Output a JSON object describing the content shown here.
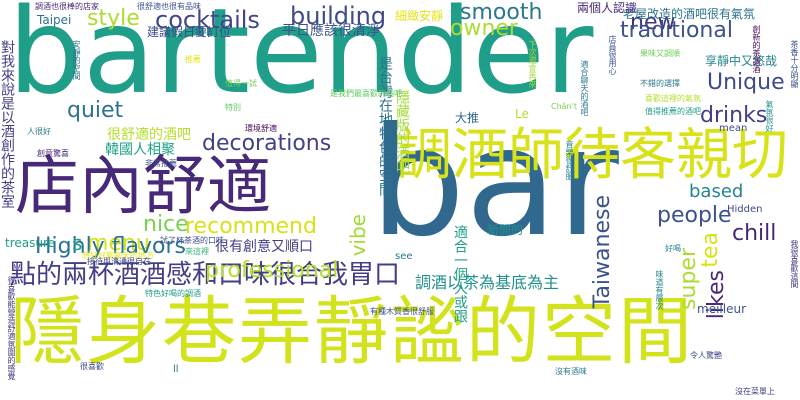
{
  "colors": {
    "background": "#ffffff",
    "palette": [
      "#440154",
      "#482878",
      "#3e4989",
      "#31688e",
      "#26828e",
      "#1f9e89",
      "#35b779",
      "#6ece58",
      "#b5de2b",
      "#fde725"
    ]
  },
  "words": [
    {
      "text": "bartender",
      "size": 118,
      "color": "#1f9e89"
    },
    {
      "text": "bar",
      "size": 150,
      "color": "#31688e"
    },
    {
      "text": "隱身巷弄靜謐的空間",
      "size": 74,
      "color": "#d2e21b"
    },
    {
      "text": "店內舒適",
      "size": 64,
      "color": "#482878"
    },
    {
      "text": "調酒師待客親切",
      "size": 56,
      "color": "#d8e219"
    },
    {
      "text": "點的兩杯酒酒感和口味很合我胃口",
      "size": 26,
      "color": "#433e85"
    },
    {
      "text": "cocktails",
      "size": 24,
      "color": "#404688"
    },
    {
      "text": "building",
      "size": 24,
      "color": "#3e4a89"
    },
    {
      "text": "style",
      "size": 22,
      "color": "#addc30"
    },
    {
      "text": "smooth",
      "size": 22,
      "color": "#2a788e"
    },
    {
      "text": "owner",
      "size": 22,
      "color": "#addc30"
    },
    {
      "text": "new",
      "size": 22,
      "color": "#46337e"
    },
    {
      "text": "traditional",
      "size": 22,
      "color": "#3b528b"
    },
    {
      "text": "Unique",
      "size": 22,
      "color": "#3e4a89"
    },
    {
      "text": "drinks",
      "size": 22,
      "color": "#433e85"
    },
    {
      "text": "quiet",
      "size": 22,
      "color": "#2c728e"
    },
    {
      "text": "decorations",
      "size": 22,
      "color": "#424086"
    },
    {
      "text": "people",
      "size": 22,
      "color": "#3b528b"
    },
    {
      "text": "based",
      "size": 18,
      "color": "#25858e"
    },
    {
      "text": "chill",
      "size": 22,
      "color": "#482677"
    },
    {
      "text": "menu",
      "size": 22,
      "color": "#d8e219"
    },
    {
      "text": "nice",
      "size": 22,
      "color": "#7ad151"
    },
    {
      "text": "recommend",
      "size": 22,
      "color": "#d8e219"
    },
    {
      "text": "Highly flavors",
      "size": 22,
      "color": "#2c728e"
    },
    {
      "text": "professional",
      "size": 22,
      "color": "#b5de2b"
    },
    {
      "text": "super",
      "size": 22,
      "color": "#addc30"
    },
    {
      "text": "likes",
      "size": 22,
      "color": "#482878"
    },
    {
      "text": "tea",
      "size": 22,
      "color": "#d8e219"
    },
    {
      "text": "vibe",
      "size": 20,
      "color": "#a2da37"
    },
    {
      "text": "Taiwanese",
      "size": 22,
      "color": "#3b528b"
    },
    {
      "text": "s",
      "size": 20,
      "color": "#1fa188"
    },
    {
      "text": "調酒以茶為基底為主",
      "size": 16,
      "color": "#21918c"
    },
    {
      "text": "適合一個人或跟",
      "size": 14,
      "color": "#1f9e89"
    },
    {
      "text": "平日應該很清淨",
      "size": 14,
      "color": "#3b528b"
    },
    {
      "text": "隱藏版的酒吧",
      "size": 14,
      "color": "#a2da37"
    },
    {
      "text": "對我來說是以酒創作的茶室",
      "size": 14,
      "color": "#424086"
    },
    {
      "text": "建議假日要訂位",
      "size": 12,
      "color": "#3e4989"
    },
    {
      "text": "很舒適的酒吧",
      "size": 14,
      "color": "#b5de2b"
    },
    {
      "text": "韓國人相聚",
      "size": 14,
      "color": "#1fa188"
    },
    {
      "text": "很有創意又順口",
      "size": 14,
      "color": "#433e85"
    },
    {
      "text": "是台灣在地特色的空間",
      "size": 14,
      "color": "#2c728e"
    },
    {
      "text": "老屋改造的酒吧很有氣氛",
      "size": 12,
      "color": "#2c728e"
    },
    {
      "text": "享靜中又悠哉",
      "size": 12,
      "color": "#25858e"
    },
    {
      "text": "兩個人認識",
      "size": 12,
      "color": "#482878"
    },
    {
      "text": "細緻安靜",
      "size": 12,
      "color": "#e5e419"
    },
    {
      "text": "Taipei",
      "size": 12,
      "color": "#2c728e"
    },
    {
      "text": "大推",
      "size": 12,
      "color": "#31688e"
    },
    {
      "text": "新開的",
      "size": 12,
      "color": "#21918c"
    },
    {
      "text": "Le",
      "size": 12,
      "color": "#b5de2b"
    },
    {
      "text": "treasure",
      "size": 12,
      "color": "#1f9e89"
    },
    {
      "text": "see",
      "size": 10,
      "color": "#2a788e"
    },
    {
      "text": "meilleur",
      "size": 12,
      "color": "#3b528b"
    },
    {
      "text": "Hidden",
      "size": 10,
      "color": "#3e4989"
    },
    {
      "text": "mean",
      "size": 10,
      "color": "#3e4989"
    },
    {
      "text": "Chân't",
      "size": 8,
      "color": "#7ad151"
    },
    {
      "text": "ll",
      "size": 10,
      "color": "#2a788e"
    },
    {
      "text": "很舒適也很有品味",
      "size": 8,
      "color": "#3b528b"
    },
    {
      "text": "很喜歡能營造舒適氛圍的感覺",
      "size": 8,
      "color": "#46337e"
    },
    {
      "text": "創意驚喜",
      "size": 8,
      "color": "#482878"
    },
    {
      "text": "想好好聊聊天的地方",
      "size": 8,
      "color": "#e5e419"
    },
    {
      "text": "是我們最喜歡的酒吧",
      "size": 8,
      "color": "#5ec962"
    },
    {
      "text": "不錯的選擇",
      "size": 8,
      "color": "#2a788e"
    },
    {
      "text": "特別",
      "size": 8,
      "color": "#5ec962"
    },
    {
      "text": "環境舒適",
      "size": 8,
      "color": "#440154"
    },
    {
      "text": "非常推薦",
      "size": 8,
      "color": "#3b528b"
    },
    {
      "text": "試了杯茶酒的口味",
      "size": 8,
      "color": "#3e4a89"
    },
    {
      "text": "很喜歡",
      "size": 8,
      "color": "#3e4989"
    },
    {
      "text": "人很好",
      "size": 8,
      "color": "#2a788e"
    },
    {
      "text": "調酒也很棒的店家",
      "size": 8,
      "color": "#482677"
    },
    {
      "text": "果味又調順",
      "size": 8,
      "color": "#6ece58"
    },
    {
      "text": "沒有酒味",
      "size": 8,
      "color": "#2a788e"
    },
    {
      "text": "令人驚艷",
      "size": 8,
      "color": "#3e4989"
    },
    {
      "text": "好喝",
      "size": 8,
      "color": "#26828e"
    },
    {
      "text": "推薦",
      "size": 8,
      "color": "#e5e419"
    },
    {
      "text": "沒在菜單上",
      "size": 8,
      "color": "#424086"
    },
    {
      "text": "值得一試",
      "size": 8,
      "color": "#6ece58"
    },
    {
      "text": "有種木質香很舒服",
      "size": 8,
      "color": "#3b528b"
    },
    {
      "text": "接待與溝通很自在",
      "size": 8,
      "color": "#3e4989"
    },
    {
      "text": "來這裡",
      "size": 8,
      "color": "#35b779"
    },
    {
      "text": "特色好喝的調酒",
      "size": 8,
      "color": "#1f9e89"
    },
    {
      "text": "喜歡這裡的氣氛",
      "size": 8,
      "color": "#b5de2b"
    },
    {
      "text": "值得推薦的酒吧",
      "size": 8,
      "color": "#1f9e89"
    },
    {
      "text": "下次還會再來",
      "size": 8,
      "color": "#a2da37"
    },
    {
      "text": "安靜的空間",
      "size": 8,
      "color": "#2c728e"
    },
    {
      "text": "店員很用心",
      "size": 8,
      "color": "#3b528b"
    },
    {
      "text": "創新的茶調酒",
      "size": 8,
      "color": "#440154"
    },
    {
      "text": "茶香十分明顯",
      "size": 8,
      "color": "#3b528b"
    },
    {
      "text": "味道有層次",
      "size": 8,
      "color": "#26828e"
    },
    {
      "text": "我很喜歡這間",
      "size": 8,
      "color": "#46337e"
    },
    {
      "text": "適合聊天的酒吧",
      "size": 8,
      "color": "#2a788e"
    },
    {
      "text": "音樂很舒服",
      "size": 8,
      "color": "#26828e"
    },
    {
      "text": "氣氛很好",
      "size": 8,
      "color": "#21918c"
    }
  ]
}
